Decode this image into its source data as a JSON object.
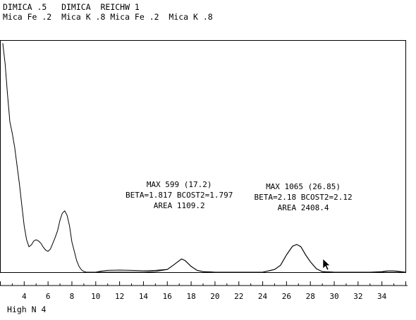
{
  "header": {
    "line1": "DIMICA .5   DIMICA  REICHW 1",
    "line2": "Mica Fe .2  Mica K .8 Mica Fe .2  Mica K .8"
  },
  "annotations": [
    {
      "lines": [
        "MAX 599 (17.2)",
        "BETA=1.817 BCOST2=1.797",
        "AREA 1109.2"
      ],
      "anchor_x": 17.0
    },
    {
      "lines": [
        "MAX 1065 (26.85)",
        "BETA=2.18 BCOST2=2.12",
        "AREA 2408.4"
      ],
      "anchor_x": 27.4
    }
  ],
  "footer": {
    "label": "High N 4"
  },
  "chart_data": {
    "type": "line",
    "x_tick_labels": [
      "4",
      "6",
      "8",
      "10",
      "12",
      "14",
      "16",
      "18",
      "20",
      "22",
      "24",
      "26",
      "28",
      "30",
      "32",
      "34"
    ],
    "xlim": [
      2.0,
      36.0
    ],
    "series": [
      {
        "role": "measured pattern",
        "x": [
          2.2,
          2.4,
          2.6,
          2.8,
          3.0,
          3.2,
          3.4,
          3.6,
          3.8,
          4.0,
          4.2,
          4.4,
          4.6,
          4.8,
          5.0,
          5.2,
          5.4,
          5.6,
          5.8,
          6.0,
          6.2,
          6.4,
          6.6,
          6.8,
          7.0,
          7.2,
          7.4,
          7.6,
          7.8,
          8.0,
          8.2,
          8.4,
          8.6,
          8.8,
          9.0,
          9.2,
          9.4,
          9.6,
          9.8,
          10.0,
          10.5,
          11.0,
          12.0,
          13.0,
          14.0,
          15.0,
          16.0,
          16.5,
          17.0,
          17.2,
          17.5,
          18.0,
          18.5,
          19.0,
          20.0,
          22.0,
          24.0,
          25.0,
          25.5,
          26.0,
          26.5,
          26.85,
          27.2,
          27.6,
          28.0,
          28.5,
          29.0,
          30.0,
          32.0,
          33.0,
          34.0,
          34.5,
          35.0,
          35.5,
          36.0
        ],
        "y": [
          990,
          900,
          770,
          650,
          600,
          540,
          460,
          380,
          290,
          200,
          140,
          110,
          118,
          135,
          140,
          135,
          125,
          108,
          95,
          90,
          100,
          125,
          150,
          180,
          225,
          255,
          265,
          245,
          200,
          130,
          90,
          50,
          25,
          10,
          3,
          0,
          0,
          0,
          0,
          0,
          5,
          8,
          9,
          8,
          6,
          8,
          12,
          30,
          50,
          57,
          50,
          25,
          8,
          2,
          0,
          0,
          0,
          12,
          30,
          75,
          112,
          120,
          110,
          75,
          45,
          15,
          2,
          0,
          0,
          0,
          2,
          6,
          6,
          3,
          0
        ]
      },
      {
        "role": "fitted peaks",
        "x": [
          10.0,
          12.0,
          14.0,
          15.0,
          16.0,
          16.5,
          17.0,
          17.2,
          17.5,
          18.0,
          18.5,
          19.0,
          20.0,
          22.0,
          24.0,
          25.0,
          25.5,
          26.0,
          26.5,
          26.85,
          27.2,
          27.6,
          28.0,
          28.5,
          29.0,
          30.0,
          32.0,
          34.0,
          36.0
        ],
        "y": [
          0,
          0,
          0,
          3,
          12,
          30,
          50,
          57,
          50,
          25,
          8,
          2,
          0,
          0,
          0,
          12,
          30,
          75,
          112,
          120,
          110,
          75,
          45,
          15,
          2,
          0,
          0,
          0,
          0
        ]
      }
    ]
  }
}
